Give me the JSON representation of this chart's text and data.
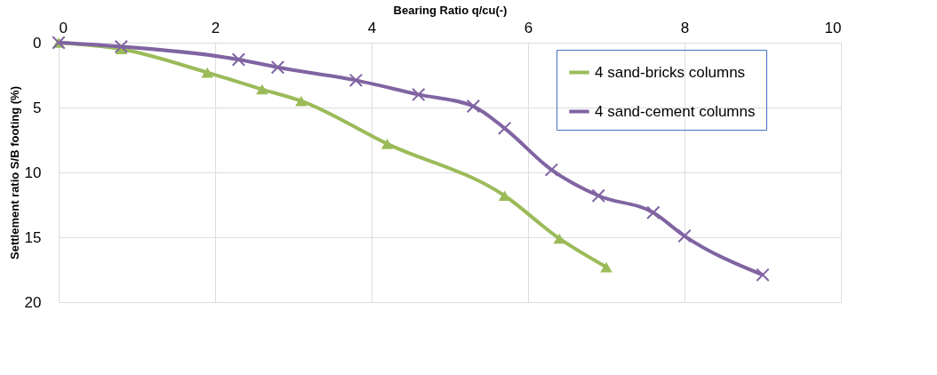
{
  "chart_data": {
    "type": "line",
    "xlabel": "Bearing  Ratio q/cu(-)",
    "ylabel": "Settlement ratio S/B footing (%)",
    "xlim": [
      0,
      10
    ],
    "xticks": [
      0,
      2,
      4,
      6,
      8,
      10
    ],
    "ylim": [
      20,
      0
    ],
    "yticks": [
      0,
      5,
      10,
      15,
      20
    ],
    "grid": true,
    "legend": "top right",
    "line_style": "solid",
    "series": [
      {
        "name": "4 sand-bricks columns",
        "color": "#9bbb59",
        "marker": "triangle",
        "x": [
          0,
          0.8,
          1.9,
          2.6,
          3.1,
          4.2,
          5.7,
          6.4,
          7.0
        ],
        "values": [
          0,
          0.5,
          2.3,
          3.6,
          4.5,
          7.8,
          11.8,
          15.1,
          17.3
        ]
      },
      {
        "name": "4 sand-cement columns",
        "color": "#8064a2",
        "marker": "cross",
        "x": [
          0,
          0.8,
          2.3,
          2.8,
          3.8,
          4.6,
          5.3,
          5.7,
          6.3,
          6.9,
          7.6,
          8.0,
          9.0
        ],
        "values": [
          0,
          0.3,
          1.3,
          1.9,
          2.9,
          4.0,
          4.9,
          6.6,
          9.8,
          11.8,
          13.1,
          14.9,
          17.9
        ]
      }
    ]
  }
}
